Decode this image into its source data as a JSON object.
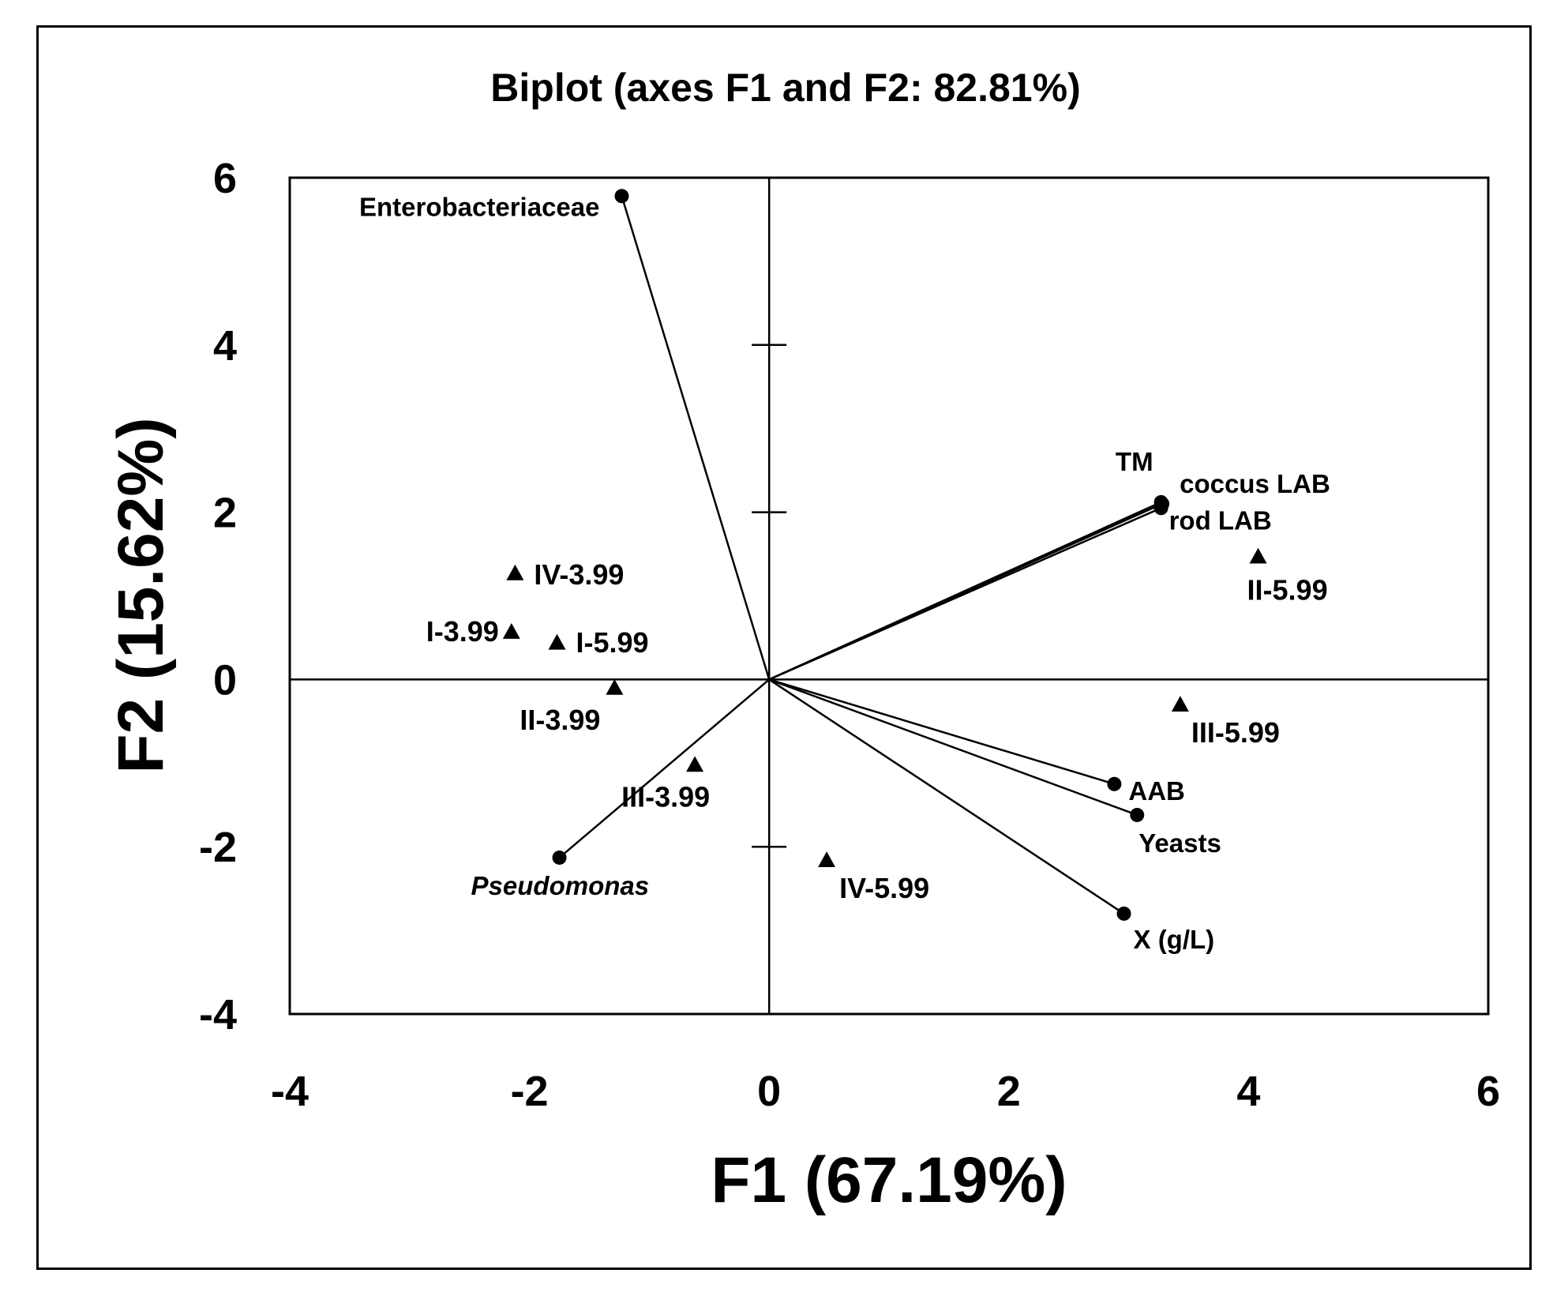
{
  "chart_data": {
    "type": "scatter",
    "title": "Biplot (axes F1 and F2: 82.81%)",
    "xlabel": "F1 (67.19%)",
    "ylabel": "F2 (15.62%)",
    "xlim": [
      -4,
      6
    ],
    "ylim": [
      -4,
      6
    ],
    "xticks": [
      "-4",
      "-2",
      "0",
      "2",
      "4",
      "6"
    ],
    "yticks": [
      "-4",
      "-2",
      "0",
      "2",
      "4",
      "6"
    ],
    "grid": false,
    "variables": [
      {
        "name": "Enterobacteriaceae",
        "x": -1.23,
        "y": 5.78
      },
      {
        "name": "TM",
        "x": 3.27,
        "y": 2.12
      },
      {
        "name": "coccus LAB",
        "x": 3.28,
        "y": 2.1
      },
      {
        "name": "rod LAB",
        "x": 3.27,
        "y": 2.05
      },
      {
        "name": "AAB",
        "x": 2.88,
        "y": -1.25
      },
      {
        "name": "Yeasts",
        "x": 3.07,
        "y": -1.62
      },
      {
        "name": "X (g/L)",
        "x": 2.96,
        "y": -2.8
      },
      {
        "name": "Pseudomonas",
        "x": -1.75,
        "y": -2.13
      }
    ],
    "observations": [
      {
        "name": "IV-3.99",
        "x": -2.12,
        "y": 1.27
      },
      {
        "name": "I-3.99",
        "x": -2.15,
        "y": 0.57
      },
      {
        "name": "I-5.99",
        "x": -1.77,
        "y": 0.44
      },
      {
        "name": "II-3.99",
        "x": -1.29,
        "y": -0.1
      },
      {
        "name": "III-3.99",
        "x": -0.62,
        "y": -1.02
      },
      {
        "name": "IV-5.99",
        "x": 0.48,
        "y": -2.16
      },
      {
        "name": "II-5.99",
        "x": 4.08,
        "y": 1.47
      },
      {
        "name": "III-5.99",
        "x": 3.43,
        "y": -0.3
      }
    ]
  }
}
